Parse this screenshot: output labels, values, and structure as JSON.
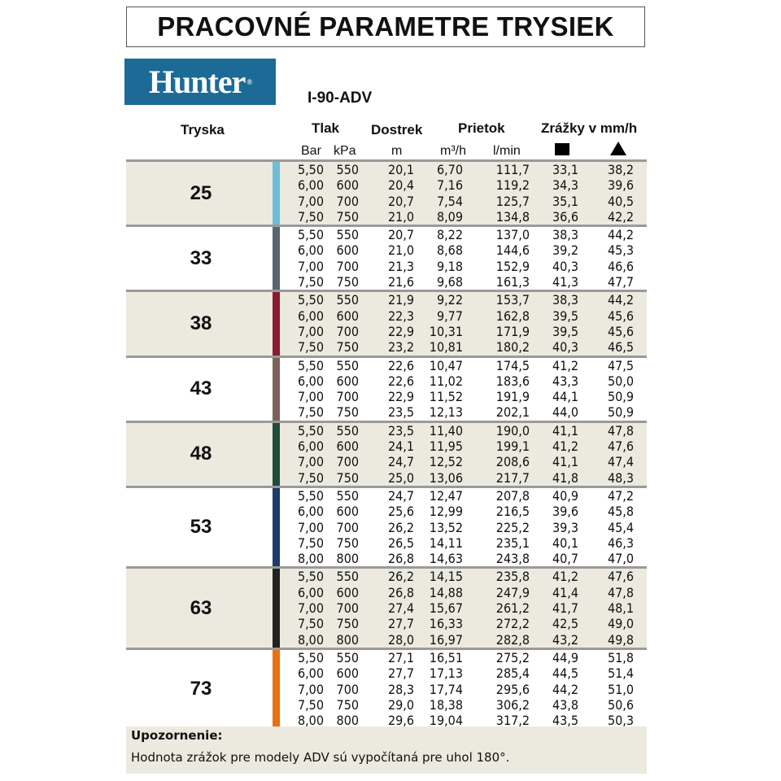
{
  "title": "PRACOVNÉ PARAMETRE TRYSIEK",
  "logo_text": "Hunter",
  "model": "I-90-ADV",
  "headers": {
    "nozzle": "Tryska",
    "pressure": "Tlak",
    "range": "Dostrek",
    "flow": "Prietok",
    "precip": "Zrážky v mm/h",
    "bar": "Bar",
    "kpa": "kPa",
    "m": "m",
    "m3h": "m³/h",
    "lmin": "l/min",
    "square_icon": "square-spacing",
    "triangle_icon": "triangle-spacing"
  },
  "groups": [
    {
      "nozzle": "25",
      "color": "#6cbfd6",
      "rows": [
        [
          "5,50",
          "550",
          "20,1",
          "6,70",
          "111,7",
          "33,1",
          "38,2"
        ],
        [
          "6,00",
          "600",
          "20,4",
          "7,16",
          "119,2",
          "34,3",
          "39,6"
        ],
        [
          "7,00",
          "700",
          "20,7",
          "7,54",
          "125,7",
          "35,1",
          "40,5"
        ],
        [
          "7,50",
          "750",
          "21,0",
          "8,09",
          "134,8",
          "36,6",
          "42,2"
        ]
      ]
    },
    {
      "nozzle": "33",
      "color": "#5a6470",
      "rows": [
        [
          "5,50",
          "550",
          "20,7",
          "8,22",
          "137,0",
          "38,3",
          "44,2"
        ],
        [
          "6,00",
          "600",
          "21,0",
          "8,68",
          "144,6",
          "39,2",
          "45,3"
        ],
        [
          "7,00",
          "700",
          "21,3",
          "9,18",
          "152,9",
          "40,3",
          "46,6"
        ],
        [
          "7,50",
          "750",
          "21,6",
          "9,68",
          "161,3",
          "41,3",
          "47,7"
        ]
      ]
    },
    {
      "nozzle": "38",
      "color": "#8c1a32",
      "rows": [
        [
          "5,50",
          "550",
          "21,9",
          "9,22",
          "153,7",
          "38,3",
          "44,2"
        ],
        [
          "6,00",
          "600",
          "22,3",
          "9,77",
          "162,8",
          "39,5",
          "45,6"
        ],
        [
          "7,00",
          "700",
          "22,9",
          "10,31",
          "171,9",
          "39,5",
          "45,6"
        ],
        [
          "7,50",
          "750",
          "23,2",
          "10,81",
          "180,2",
          "40,3",
          "46,5"
        ]
      ]
    },
    {
      "nozzle": "43",
      "color": "#7b6258",
      "rows": [
        [
          "5,50",
          "550",
          "22,6",
          "10,47",
          "174,5",
          "41,2",
          "47,5"
        ],
        [
          "6,00",
          "600",
          "22,6",
          "11,02",
          "183,6",
          "43,3",
          "50,0"
        ],
        [
          "7,00",
          "700",
          "22,9",
          "11,52",
          "191,9",
          "44,1",
          "50,9"
        ],
        [
          "7,50",
          "750",
          "23,5",
          "12,13",
          "202,1",
          "44,0",
          "50,9"
        ]
      ]
    },
    {
      "nozzle": "48",
      "color": "#1f4d3a",
      "rows": [
        [
          "5,50",
          "550",
          "23,5",
          "11,40",
          "190,0",
          "41,1",
          "47,8"
        ],
        [
          "6,00",
          "600",
          "24,1",
          "11,95",
          "199,1",
          "41,2",
          "47,6"
        ],
        [
          "7,00",
          "700",
          "24,7",
          "12,52",
          "208,6",
          "41,1",
          "47,4"
        ],
        [
          "7,50",
          "750",
          "25,0",
          "13,06",
          "217,7",
          "41,8",
          "48,3"
        ]
      ]
    },
    {
      "nozzle": "53",
      "color": "#1c3a6a",
      "rows": [
        [
          "5,50",
          "550",
          "24,7",
          "12,47",
          "207,8",
          "40,9",
          "47,2"
        ],
        [
          "6,00",
          "600",
          "25,6",
          "12,99",
          "216,5",
          "39,6",
          "45,8"
        ],
        [
          "7,00",
          "700",
          "26,2",
          "13,52",
          "225,2",
          "39,3",
          "45,4"
        ],
        [
          "7,50",
          "750",
          "26,5",
          "14,11",
          "235,1",
          "40,1",
          "46,3"
        ],
        [
          "8,00",
          "800",
          "26,8",
          "14,63",
          "243,8",
          "40,7",
          "47,0"
        ]
      ]
    },
    {
      "nozzle": "63",
      "color": "#222222",
      "rows": [
        [
          "5,50",
          "550",
          "26,2",
          "14,15",
          "235,8",
          "41,2",
          "47,6"
        ],
        [
          "6,00",
          "600",
          "26,8",
          "14,88",
          "247,9",
          "41,4",
          "47,8"
        ],
        [
          "7,00",
          "700",
          "27,4",
          "15,67",
          "261,2",
          "41,7",
          "48,1"
        ],
        [
          "7,50",
          "750",
          "27,7",
          "16,33",
          "272,2",
          "42,5",
          "49,0"
        ],
        [
          "8,00",
          "800",
          "28,0",
          "16,97",
          "282,8",
          "43,2",
          "49,8"
        ]
      ]
    },
    {
      "nozzle": "73",
      "color": "#e8700f",
      "rows": [
        [
          "5,50",
          "550",
          "27,1",
          "16,51",
          "275,2",
          "44,9",
          "51,8"
        ],
        [
          "6,00",
          "600",
          "27,7",
          "17,13",
          "285,4",
          "44,5",
          "51,4"
        ],
        [
          "7,00",
          "700",
          "28,3",
          "17,74",
          "295,6",
          "44,2",
          "51,0"
        ],
        [
          "7,50",
          "750",
          "29,0",
          "18,38",
          "306,2",
          "43,8",
          "50,6"
        ],
        [
          "8,00",
          "800",
          "29,6",
          "19,04",
          "317,2",
          "43,5",
          "50,3"
        ]
      ]
    }
  ],
  "note": {
    "heading": "Upozornenie:",
    "text": "Hodnota zrážok pre modely ADV sú vypočítaná pre uhol 180°."
  }
}
